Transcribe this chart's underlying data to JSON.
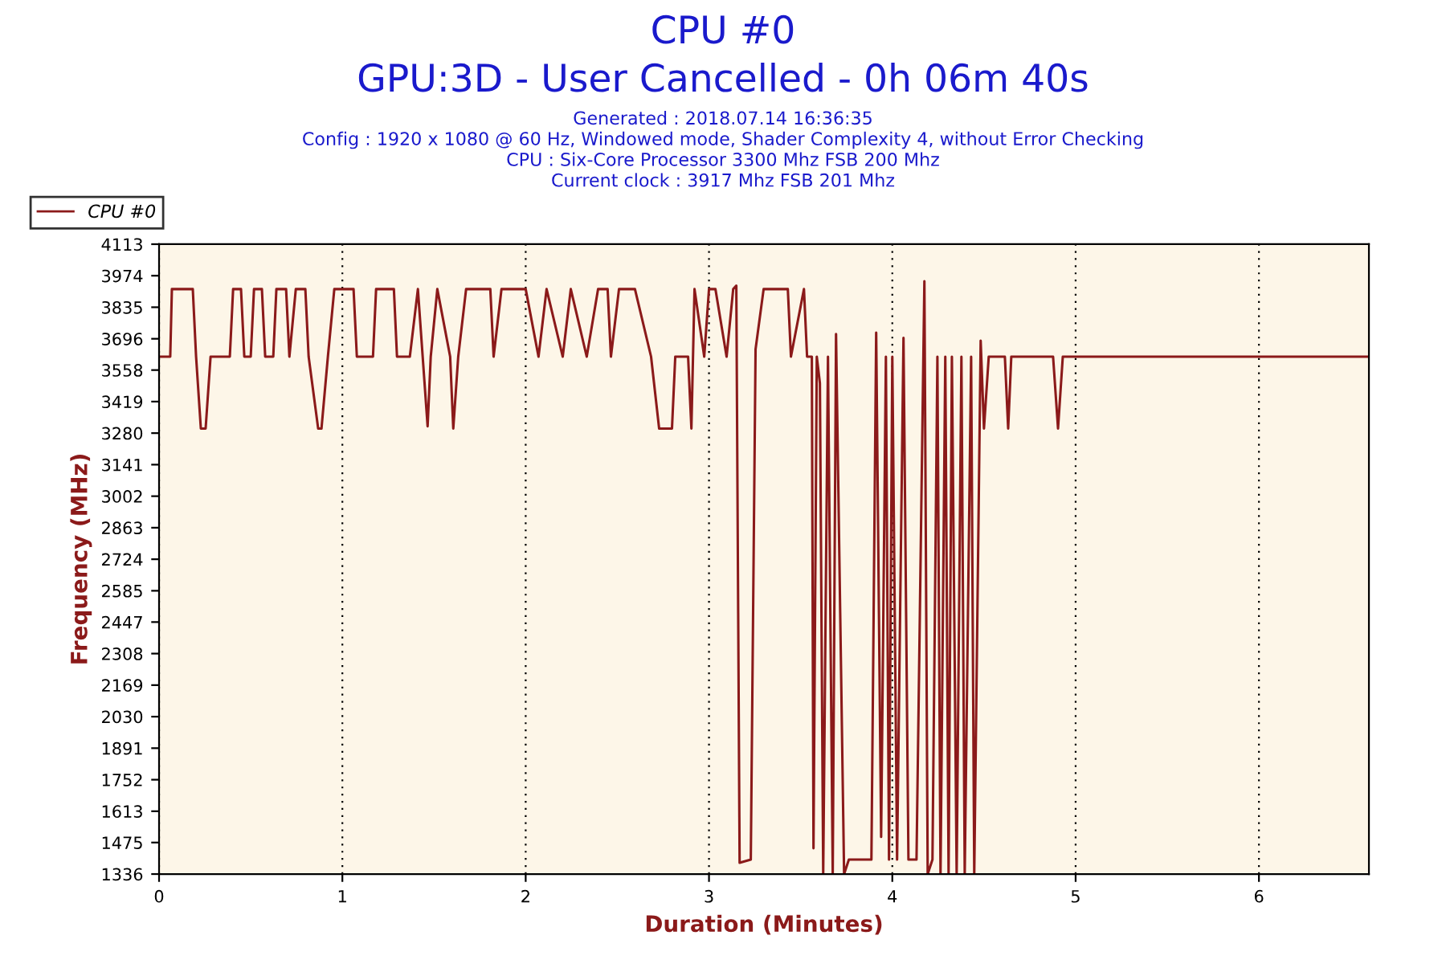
{
  "chart_data": {
    "type": "line",
    "title": "CPU #0",
    "subtitle": "GPU:3D - User Cancelled - 0h 06m 40s",
    "annotations": [
      "Generated : 2018.07.14 16:36:35",
      "Config : 1920 x 1080 @ 60 Hz, Windowed mode, Shader Complexity 4, without Error Checking",
      "CPU : Six-Core Processor 3300 Mhz FSB 200 Mhz",
      "Current clock : 3917 Mhz FSB 201 Mhz"
    ],
    "xlabel": "Duration (Minutes)",
    "ylabel": "Frequency (MHz)",
    "xlim": [
      0,
      6.6
    ],
    "xticks": [
      0,
      1,
      2,
      3,
      4,
      5,
      6
    ],
    "ylim": [
      1336,
      4113
    ],
    "yticks": [
      1336,
      1475,
      1613,
      1752,
      1891,
      2030,
      2169,
      2308,
      2447,
      2585,
      2724,
      2863,
      3002,
      3141,
      3280,
      3419,
      3558,
      3696,
      3835,
      3974,
      4113
    ],
    "grid": "x",
    "legend": "top left",
    "line_style": "solid",
    "marker": "none",
    "series": [
      {
        "name": "CPU #0",
        "color": "#8b1a1a",
        "x": [
          0.009,
          0.061,
          0.07,
          0.184,
          0.202,
          0.228,
          0.254,
          0.281,
          0.386,
          0.404,
          0.447,
          0.465,
          0.5,
          0.518,
          0.561,
          0.579,
          0.623,
          0.64,
          0.693,
          0.711,
          0.746,
          0.798,
          0.816,
          0.868,
          0.886,
          0.921,
          0.956,
          1.0,
          1.061,
          1.079,
          1.167,
          1.184,
          1.281,
          1.298,
          1.368,
          1.412,
          1.465,
          1.482,
          1.518,
          1.588,
          1.605,
          1.632,
          1.675,
          1.807,
          1.825,
          1.868,
          2.0,
          2.07,
          2.114,
          2.202,
          2.246,
          2.333,
          2.395,
          2.447,
          2.465,
          2.509,
          2.596,
          2.684,
          2.728,
          2.798,
          2.816,
          2.886,
          2.904,
          2.921,
          2.974,
          3.0,
          3.035,
          3.096,
          3.132,
          3.149,
          3.167,
          3.228,
          3.254,
          3.298,
          3.43,
          3.447,
          3.518,
          3.535,
          3.561,
          3.57,
          3.588,
          3.605,
          3.623,
          3.649,
          3.675,
          3.693,
          3.737,
          3.763,
          3.886,
          3.912,
          3.939,
          3.965,
          3.982,
          4.0,
          4.026,
          4.061,
          4.088,
          4.132,
          4.175,
          4.193,
          4.219,
          4.246,
          4.263,
          4.289,
          4.307,
          4.325,
          4.351,
          4.377,
          4.395,
          4.43,
          4.447,
          4.482,
          4.5,
          4.526,
          4.614,
          4.632,
          4.649,
          4.877,
          4.904,
          4.93,
          6.6
        ],
        "values": [
          3617,
          3617,
          3915,
          3915,
          3617,
          3300,
          3300,
          3617,
          3617,
          3915,
          3915,
          3617,
          3617,
          3915,
          3915,
          3617,
          3617,
          3915,
          3915,
          3617,
          3915,
          3915,
          3617,
          3300,
          3300,
          3617,
          3915,
          3915,
          3915,
          3617,
          3617,
          3915,
          3915,
          3617,
          3617,
          3915,
          3310,
          3617,
          3915,
          3617,
          3300,
          3617,
          3915,
          3915,
          3617,
          3915,
          3915,
          3617,
          3915,
          3617,
          3915,
          3617,
          3915,
          3915,
          3617,
          3915,
          3915,
          3617,
          3300,
          3300,
          3617,
          3617,
          3300,
          3915,
          3617,
          3915,
          3915,
          3617,
          3915,
          3930,
          1386,
          1400,
          3650,
          3915,
          3915,
          3617,
          3915,
          3617,
          3617,
          1450,
          3617,
          3500,
          1336,
          3617,
          1336,
          3717,
          1336,
          1400,
          1400,
          3723,
          1500,
          3617,
          1400,
          3617,
          1400,
          3700,
          1400,
          1400,
          3950,
          1336,
          1400,
          3617,
          1336,
          3617,
          1336,
          3617,
          1336,
          3617,
          1336,
          3617,
          1336,
          3688,
          3300,
          3617,
          3617,
          3300,
          3617,
          3617,
          3300,
          3617,
          3617
        ]
      }
    ]
  }
}
